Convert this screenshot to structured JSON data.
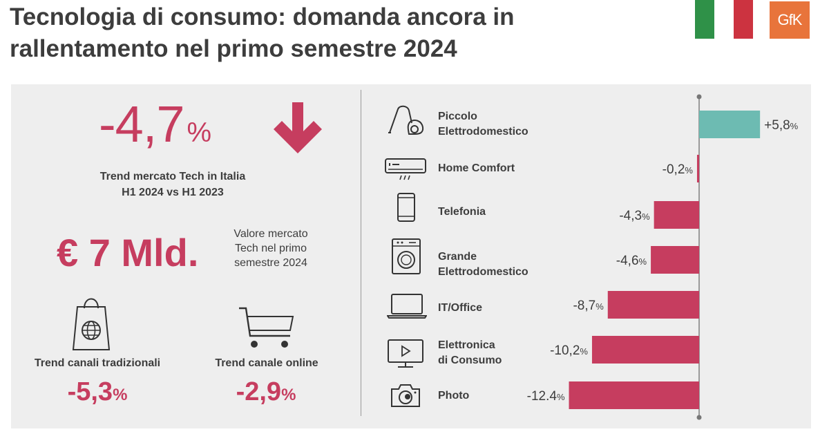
{
  "header": {
    "title_line1": "Tecnologia di consumo: domanda ancora in",
    "title_line2": "rallentamento nel primo semestre 2024",
    "logo_text": "GfK",
    "flag_colors": [
      "#2f9148",
      "#ffffff",
      "#cc3340"
    ]
  },
  "kpi": {
    "market_trend": {
      "value": "-4,7",
      "unit": "%",
      "label_line1": "Trend mercato Tech in Italia",
      "label_line2": "H1 2024 vs H1 2023"
    },
    "market_value": {
      "value": "€ 7 Mld.",
      "label_line1": "Valore mercato",
      "label_line2": "Tech nel primo",
      "label_line3": "semestre 2024"
    },
    "traditional": {
      "label": "Trend canali tradizionali",
      "value": "-5,3",
      "unit": "%"
    },
    "online": {
      "label": "Trend canale online",
      "value": "-2,9",
      "unit": "%"
    }
  },
  "categories": [
    {
      "line1": "Piccolo",
      "line2": "Elettrodomestico",
      "icon": "vacuum-icon"
    },
    {
      "line1": "Home Comfort",
      "line2": "",
      "icon": "air-conditioner-icon"
    },
    {
      "line1": "Telefonia",
      "line2": "",
      "icon": "smartphone-icon"
    },
    {
      "line1": "Grande",
      "line2": "Elettrodomestico",
      "icon": "washing-machine-icon"
    },
    {
      "line1": "IT/Office",
      "line2": "",
      "icon": "laptop-icon"
    },
    {
      "line1": "Elettronica",
      "line2": "di Consumo",
      "icon": "tv-icon"
    },
    {
      "line1": "Photo",
      "line2": "",
      "icon": "camera-icon"
    }
  ],
  "chart_data": {
    "type": "bar",
    "orientation": "horizontal",
    "categories": [
      "Piccolo Elettrodomestico",
      "Home Comfort",
      "Telefonia",
      "Grande Elettrodomestico",
      "IT/Office",
      "Elettronica di Consumo",
      "Photo"
    ],
    "values": [
      5.8,
      -0.2,
      -4.3,
      -4.6,
      -8.7,
      -10.2,
      -12.4
    ],
    "data_labels": [
      {
        "num": "+5,8",
        "unit": "%"
      },
      {
        "num": "-0,2",
        "unit": "%"
      },
      {
        "num": "-4,3",
        "unit": "%"
      },
      {
        "num": "-4,6",
        "unit": "%"
      },
      {
        "num": "-8,7",
        "unit": "%"
      },
      {
        "num": "-10,2",
        "unit": "%"
      },
      {
        "num": "-12.4",
        "unit": "%"
      }
    ],
    "positive_color": "#6dbbb2",
    "negative_color": "#c63d5f",
    "xlim": [
      -13,
      6
    ],
    "grid": false,
    "legend": "none"
  }
}
